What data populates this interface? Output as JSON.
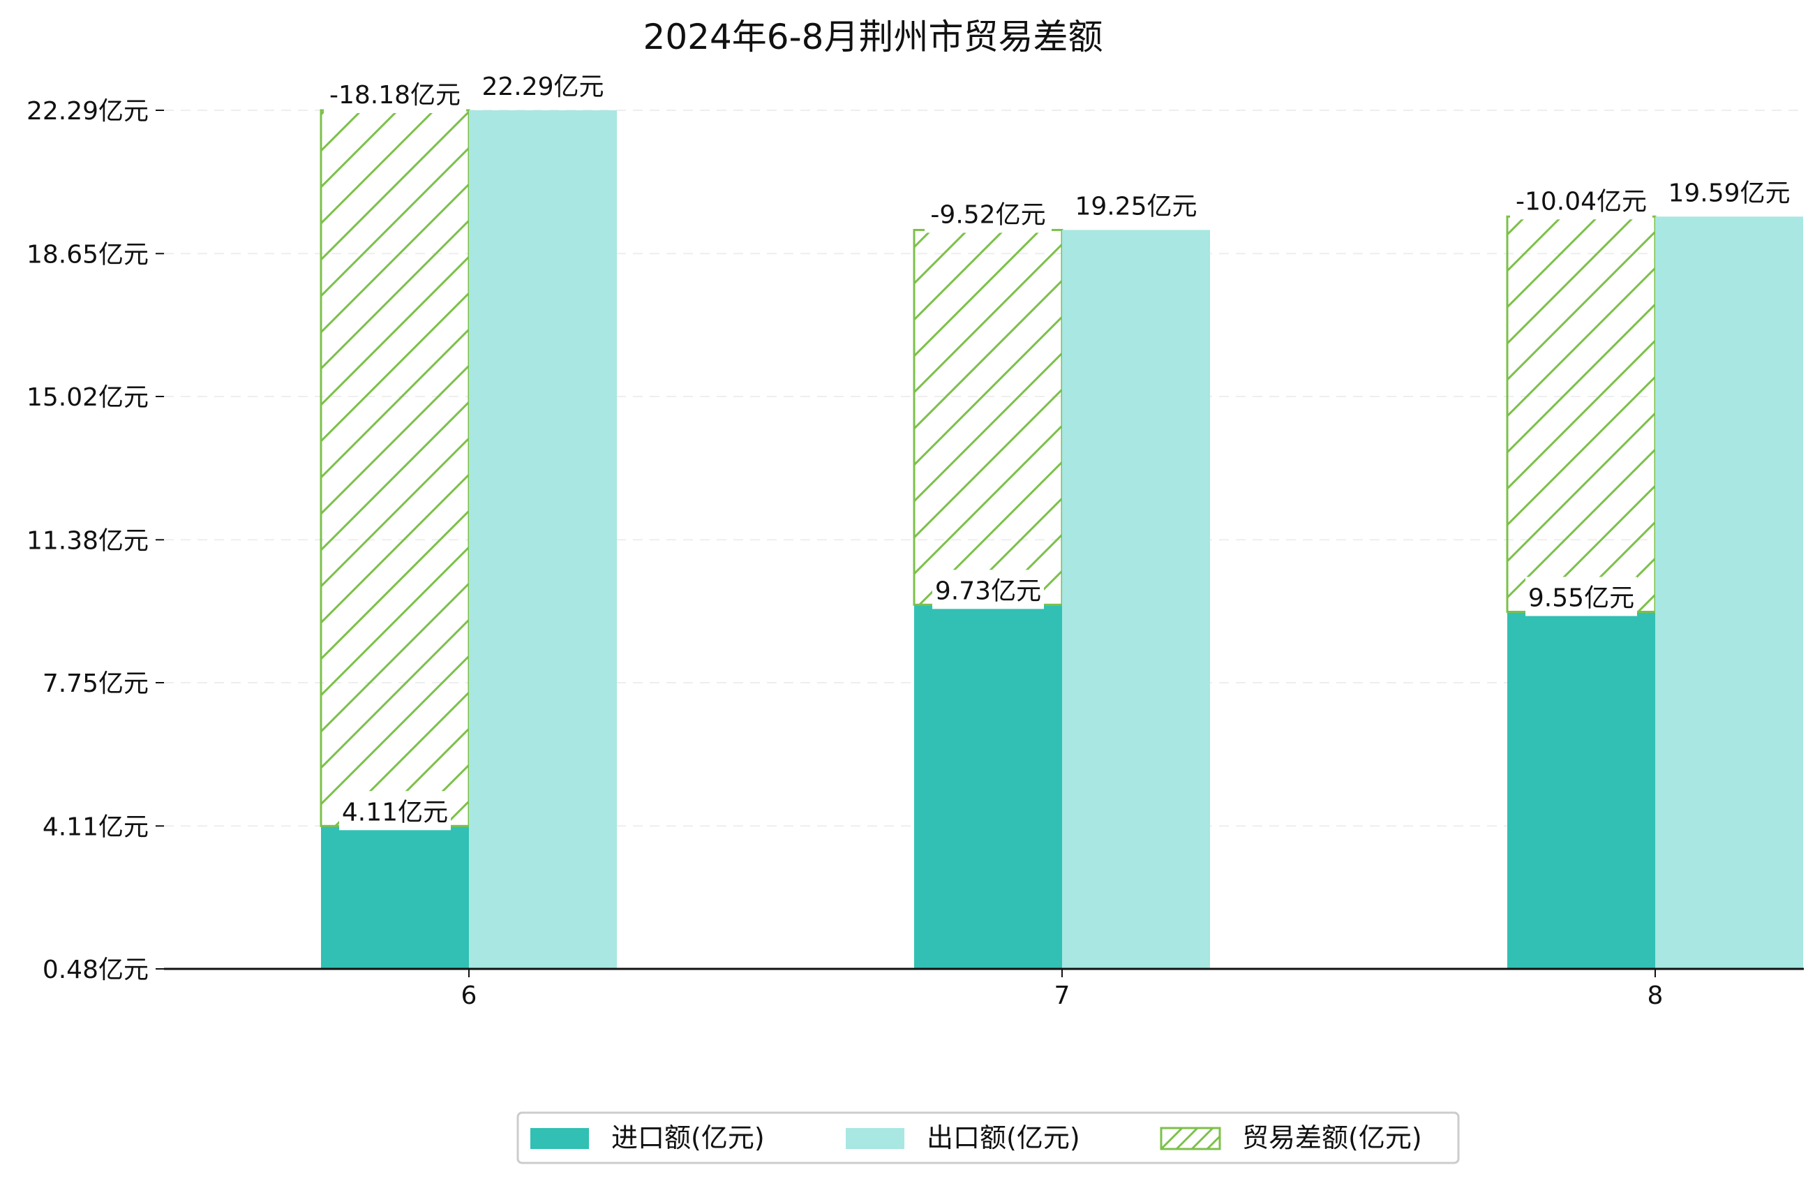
{
  "chart_data": {
    "type": "bar",
    "title": "2024年6-8月荆州市贸易差额",
    "categories": [
      "6",
      "7",
      "8"
    ],
    "series": [
      {
        "name": "进口额(亿元)",
        "values": [
          4.11,
          9.73,
          9.55
        ],
        "labels": [
          "4.11亿元",
          "9.73亿元",
          "9.55亿元"
        ],
        "color": "#31c0b3"
      },
      {
        "name": "出口额(亿元)",
        "values": [
          22.29,
          19.25,
          19.59
        ],
        "labels": [
          "22.29亿元",
          "19.25亿元",
          "19.59亿元"
        ],
        "color": "#a8e7e2"
      },
      {
        "name": "贸易差额(亿元)",
        "values": [
          -18.18,
          -9.52,
          -10.04
        ],
        "labels": [
          "-18.18亿元",
          "-9.52亿元",
          "-10.04亿元"
        ],
        "color": "#7cc04a"
      }
    ],
    "y_ticks": [
      0.48,
      4.11,
      7.75,
      11.38,
      15.02,
      18.65,
      22.29
    ],
    "y_tick_labels": [
      "0.48亿元",
      "4.11亿元",
      "7.75亿元",
      "11.38亿元",
      "15.02亿元",
      "18.65亿元",
      "22.29亿元"
    ],
    "ylim": [
      0.48,
      22.29
    ],
    "grid": true,
    "legend_position": "bottom-center",
    "xlabel": "",
    "ylabel": ""
  }
}
